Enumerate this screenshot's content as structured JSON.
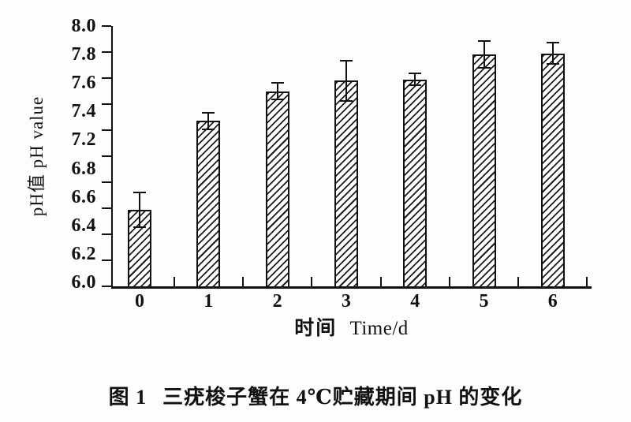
{
  "figure": {
    "caption_label": "图 1",
    "caption_text": "三疣梭子蟹在 4℃贮藏期间 pH 的变化"
  },
  "chart_data": {
    "type": "bar",
    "title": "",
    "categories": [
      "0",
      "1",
      "2",
      "3",
      "4",
      "5",
      "6"
    ],
    "values": [
      6.59,
      7.27,
      7.5,
      7.58,
      7.59,
      7.78,
      7.79
    ],
    "errors": [
      0.14,
      0.07,
      0.07,
      0.16,
      0.05,
      0.11,
      0.09
    ],
    "xlabel_cn": "时间",
    "xlabel_en": "Time/d",
    "ylabel": "pH值 pH value",
    "ylim": [
      6.0,
      8.0
    ],
    "y_tick_step": 0.2,
    "y_axis_labels": [
      "8.0",
      "7.8",
      "7.6",
      "7.4",
      "7.2",
      "6.8",
      "6.6",
      "6.4",
      "6.2",
      "6.0"
    ],
    "bar_fill": "diagonal-hatch",
    "bar_color": "#111111",
    "background": "#fdfdfc",
    "grid": false,
    "legend": null
  }
}
